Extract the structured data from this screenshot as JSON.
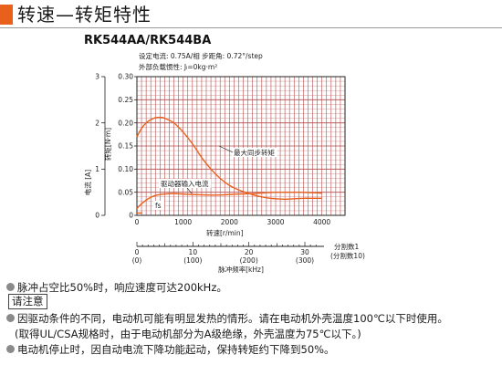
{
  "header": {
    "title": "转速—转矩特性"
  },
  "chart_data": {
    "type": "line",
    "model": "RK544AA/RK544BA",
    "conditions": [
      "设定电流:  0.75A/相   步距角:  0.72°/step",
      "外部负载惯性:  Jₗ=0kg·m²"
    ],
    "xlabel": "转速[r/min]",
    "xlim": [
      0,
      4500
    ],
    "x_ticks": [
      0,
      1000,
      2000,
      3000,
      4000
    ],
    "ylabel": "转矩[N·m]",
    "ylim": [
      0,
      0.3
    ],
    "y_ticks": [
      "0",
      "0.05",
      "0.10",
      "0.15",
      "0.20",
      "0.25",
      "0.30"
    ],
    "y2label": "电流 [A]",
    "y2lim": [
      0,
      3
    ],
    "y2_ticks": [
      "0",
      "1",
      "2",
      "3"
    ],
    "series": [
      {
        "name": "最大同步转矩",
        "x": [
          0,
          100,
          200,
          300,
          400,
          500,
          600,
          800,
          1000,
          1200,
          1400,
          1600,
          1800,
          2000,
          2200,
          2400,
          2600,
          2800,
          3000,
          3200,
          3400,
          3600,
          3800,
          4000
        ],
        "y": [
          0.17,
          0.188,
          0.2,
          0.207,
          0.211,
          0.212,
          0.21,
          0.2,
          0.18,
          0.155,
          0.125,
          0.1,
          0.08,
          0.065,
          0.055,
          0.048,
          0.042,
          0.038,
          0.036,
          0.035,
          0.036,
          0.037,
          0.037,
          0.037
        ]
      },
      {
        "name": "驱动器输入电流",
        "x": [
          0,
          100,
          200,
          300,
          400,
          500,
          600,
          800,
          1000,
          1200,
          1500,
          1800,
          2000,
          2200,
          2500,
          2800,
          3000,
          3200,
          3500,
          3800,
          4000
        ],
        "y": [
          0.15,
          0.25,
          0.33,
          0.39,
          0.43,
          0.45,
          0.46,
          0.47,
          0.46,
          0.45,
          0.44,
          0.44,
          0.45,
          0.46,
          0.47,
          0.49,
          0.5,
          0.5,
          0.5,
          0.49,
          0.48
        ]
      }
    ],
    "fs_label": "fs",
    "pulse_axis": {
      "label": "脉冲频率[kHz]",
      "ticks": [
        {
          "value": "0",
          "alt": "(0)"
        },
        {
          "value": "10",
          "alt": "(100)"
        },
        {
          "value": "20",
          "alt": "(200)"
        },
        {
          "value": "30",
          "alt": "(300)"
        }
      ],
      "division_label": "分割数1",
      "division_label_alt": "(分割数10)"
    }
  },
  "notes": {
    "line1": "脉冲占空比50%时，响应速度可达200kHz。",
    "caution_label": "请注意",
    "line2": "因驱动条件的不同，电动机可能有明显发热的情形。请在电动机外壳温度100℃以下时使用。",
    "line3": "(取得UL/CSA规格时，由于电动机部分为A级绝缘，外壳温度为75℃以下。)",
    "line4": "电动机停止时，因自动电流下降功能起动，保持转矩约下降到50%。"
  },
  "colors": {
    "accent": "#e8601c",
    "torque_curve": "#e8601c",
    "current_curve": "#e8601c",
    "grid": "#b44a4a",
    "axis": "#222222"
  }
}
